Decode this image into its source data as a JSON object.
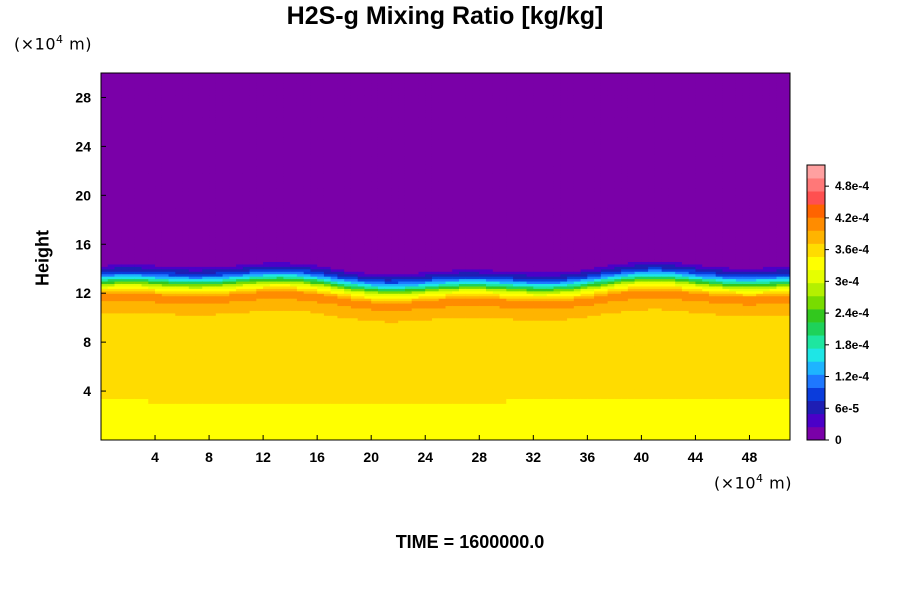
{
  "chart_data": {
    "type": "heatmap",
    "title": "H2S-g Mixing Ratio [kg/kg]",
    "ylabel": "Height",
    "x_unit_prefix": "(×10",
    "x_unit_exp": "4",
    "x_unit_suffix": " m)",
    "y_unit_prefix": "(×10",
    "y_unit_exp": "4",
    "y_unit_suffix": " m)",
    "xlim": [
      0,
      51
    ],
    "ylim": [
      0,
      30
    ],
    "x_ticks": [
      4,
      8,
      12,
      16,
      20,
      24,
      28,
      32,
      36,
      40,
      44,
      48
    ],
    "y_ticks": [
      4,
      8,
      12,
      16,
      20,
      24,
      28
    ],
    "footer": "TIME = 1600000.0",
    "colorbar": {
      "min": 0,
      "max": 0.00052,
      "labels": [
        "0",
        "6e-5",
        "1.2e-4",
        "1.8e-4",
        "2.4e-4",
        "3e-4",
        "3.6e-4",
        "4.2e-4",
        "4.8e-4"
      ],
      "label_values": [
        0,
        6e-05,
        0.00012,
        0.00018,
        0.00024,
        0.0003,
        0.00036,
        0.00042,
        0.00048
      ],
      "colors": [
        "#7a00a8",
        "#4b00c8",
        "#1e1eb4",
        "#0a3cdc",
        "#1e78ff",
        "#1eb4ff",
        "#1ee6e6",
        "#1ee6a0",
        "#1ed25a",
        "#32c81e",
        "#78dc00",
        "#b4f000",
        "#e6ff00",
        "#ffff00",
        "#ffdc00",
        "#ffb400",
        "#ff8c00",
        "#ff6400",
        "#ff5050",
        "#ff7878",
        "#ffa0a0"
      ]
    },
    "profile": [
      {
        "height": 0,
        "value": 0.00034
      },
      {
        "height": 2.5,
        "value": 0.00034
      },
      {
        "height": 3.5,
        "value": 0.000355
      },
      {
        "height": 10,
        "value": 0.00037
      },
      {
        "height": 11.5,
        "value": 0.00041
      },
      {
        "height": 12.3,
        "value": 0.0003
      },
      {
        "height": 12.8,
        "value": 0.00018
      },
      {
        "height": 13.3,
        "value": 9e-05
      },
      {
        "height": 14,
        "value": 2e-05
      },
      {
        "height": 14.5,
        "value": 0
      },
      {
        "height": 30,
        "value": 0
      }
    ]
  }
}
